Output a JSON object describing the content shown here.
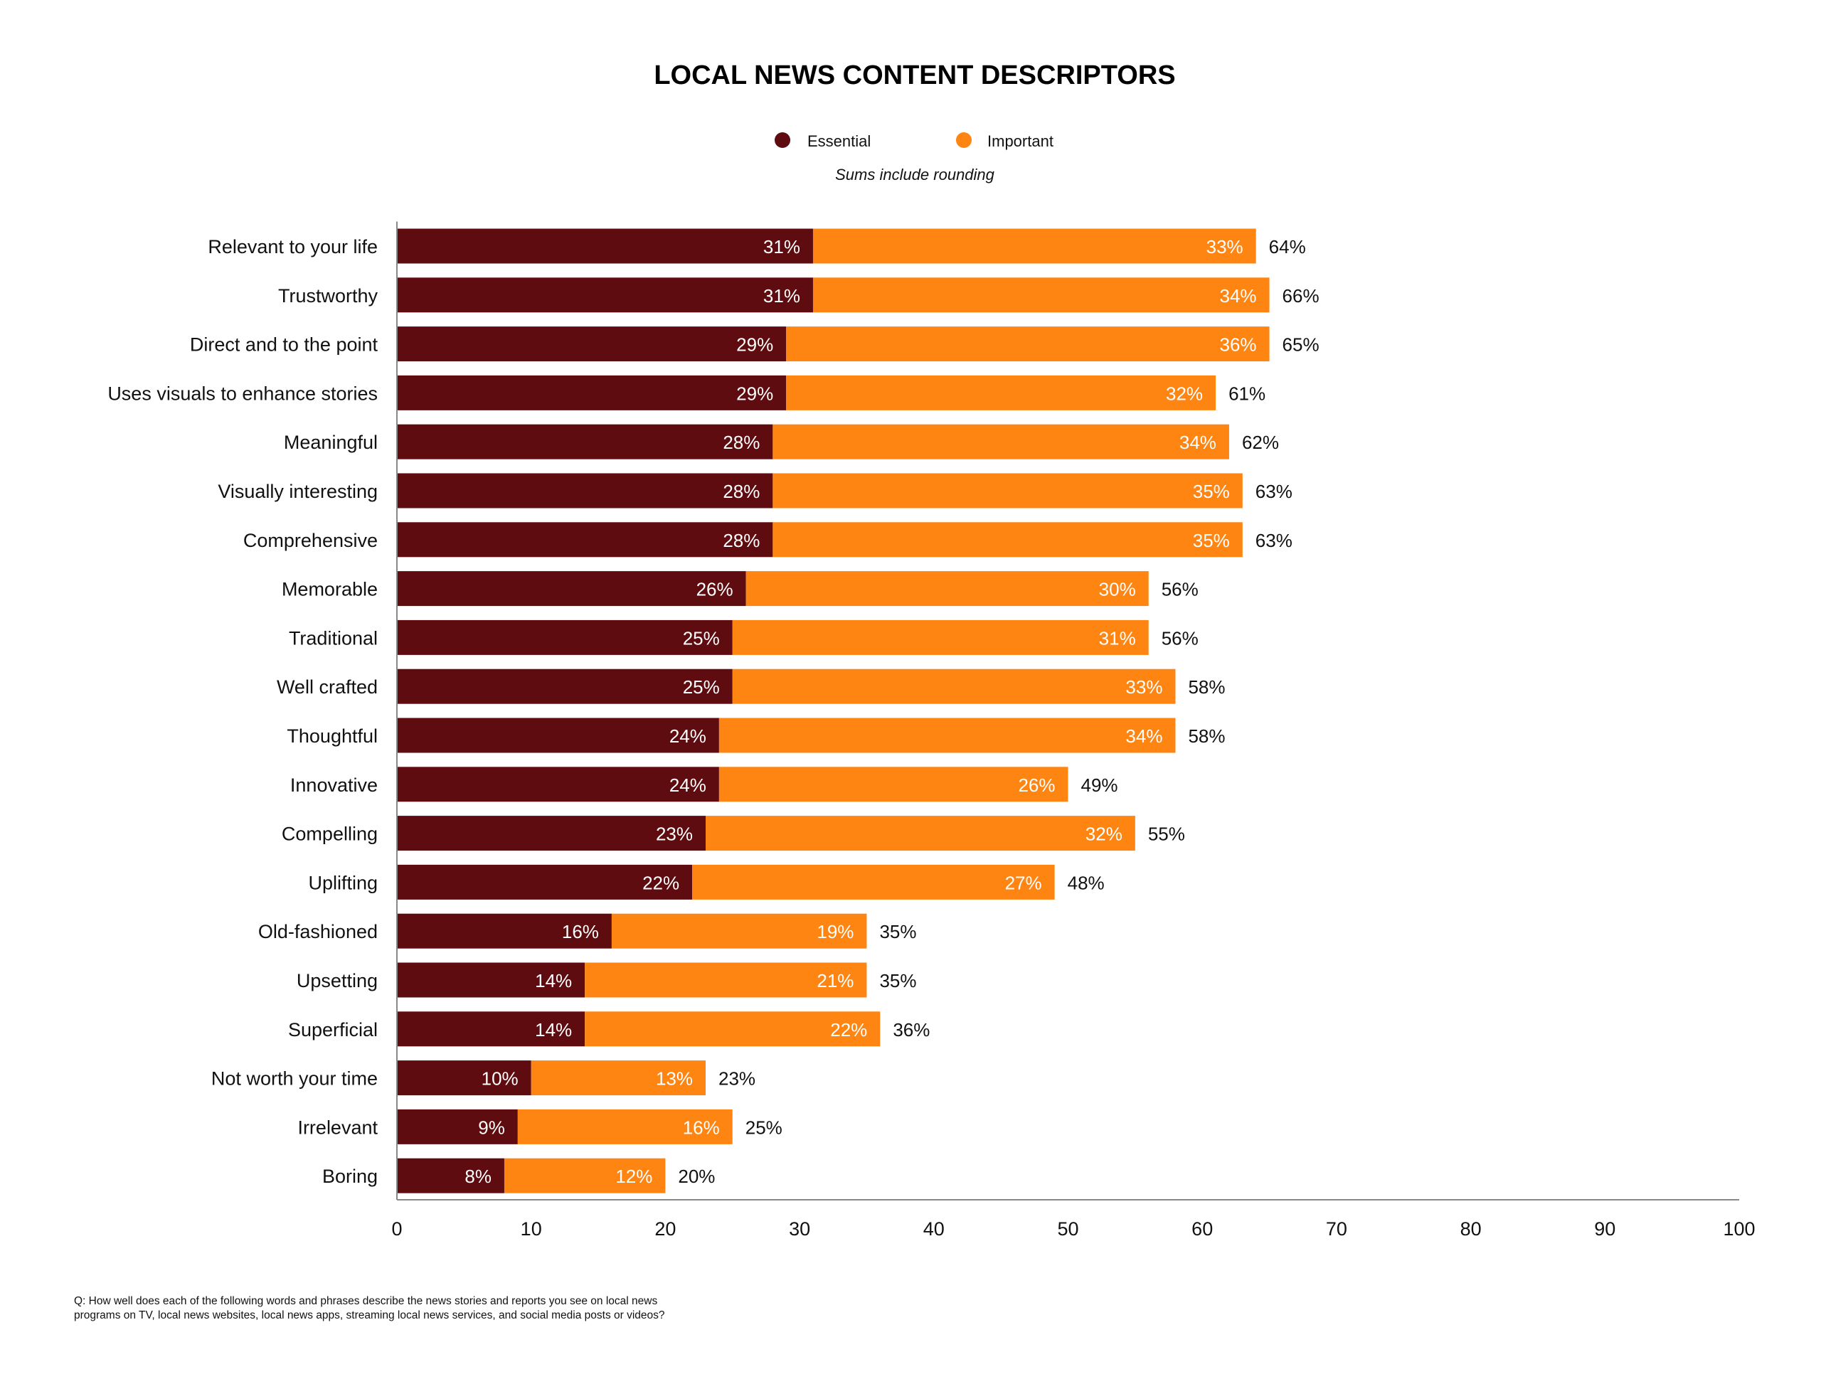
{
  "chart_data": {
    "type": "bar",
    "orientation": "horizontal",
    "stacked": true,
    "title": "LOCAL NEWS CONTENT DESCRIPTORS",
    "subtitle": "Sums include rounding",
    "footnote": [
      "Q: How well does each of the following words and phrases describe the news stories and reports you see on local news",
      "programs on TV, local news websites, local news apps, streaming local news services, and social media posts or videos?"
    ],
    "legend_placement": "top-center",
    "grid": false,
    "xlim": [
      0,
      100
    ],
    "xticks": [
      0,
      10,
      20,
      30,
      40,
      50,
      60,
      70,
      80,
      90,
      100
    ],
    "categories": [
      "Relevant to your life",
      "Trustworthy",
      "Direct and to the point",
      "Uses visuals to enhance stories",
      "Meaningful",
      "Visually interesting",
      "Comprehensive",
      "Memorable",
      "Traditional",
      "Well crafted",
      "Thoughtful",
      "Innovative",
      "Compelling",
      "Uplifting",
      "Old-fashioned",
      "Upsetting",
      "Superficial",
      "Not worth your time",
      "Irrelevant",
      "Boring"
    ],
    "series": [
      {
        "name": "Essential",
        "color": "#5f0c10",
        "values": [
          31,
          31,
          29,
          29,
          28,
          28,
          28,
          26,
          25,
          25,
          24,
          24,
          23,
          22,
          16,
          14,
          14,
          10,
          9,
          8
        ]
      },
      {
        "name": "Important",
        "color": "#ff8513",
        "values": [
          33,
          34,
          36,
          32,
          34,
          35,
          35,
          30,
          31,
          33,
          34,
          26,
          32,
          27,
          19,
          21,
          22,
          13,
          16,
          12
        ]
      }
    ],
    "totals": [
      64,
      66,
      65,
      61,
      62,
      63,
      63,
      56,
      56,
      58,
      58,
      49,
      55,
      48,
      35,
      35,
      36,
      23,
      25,
      20
    ],
    "value_suffix": "%"
  }
}
